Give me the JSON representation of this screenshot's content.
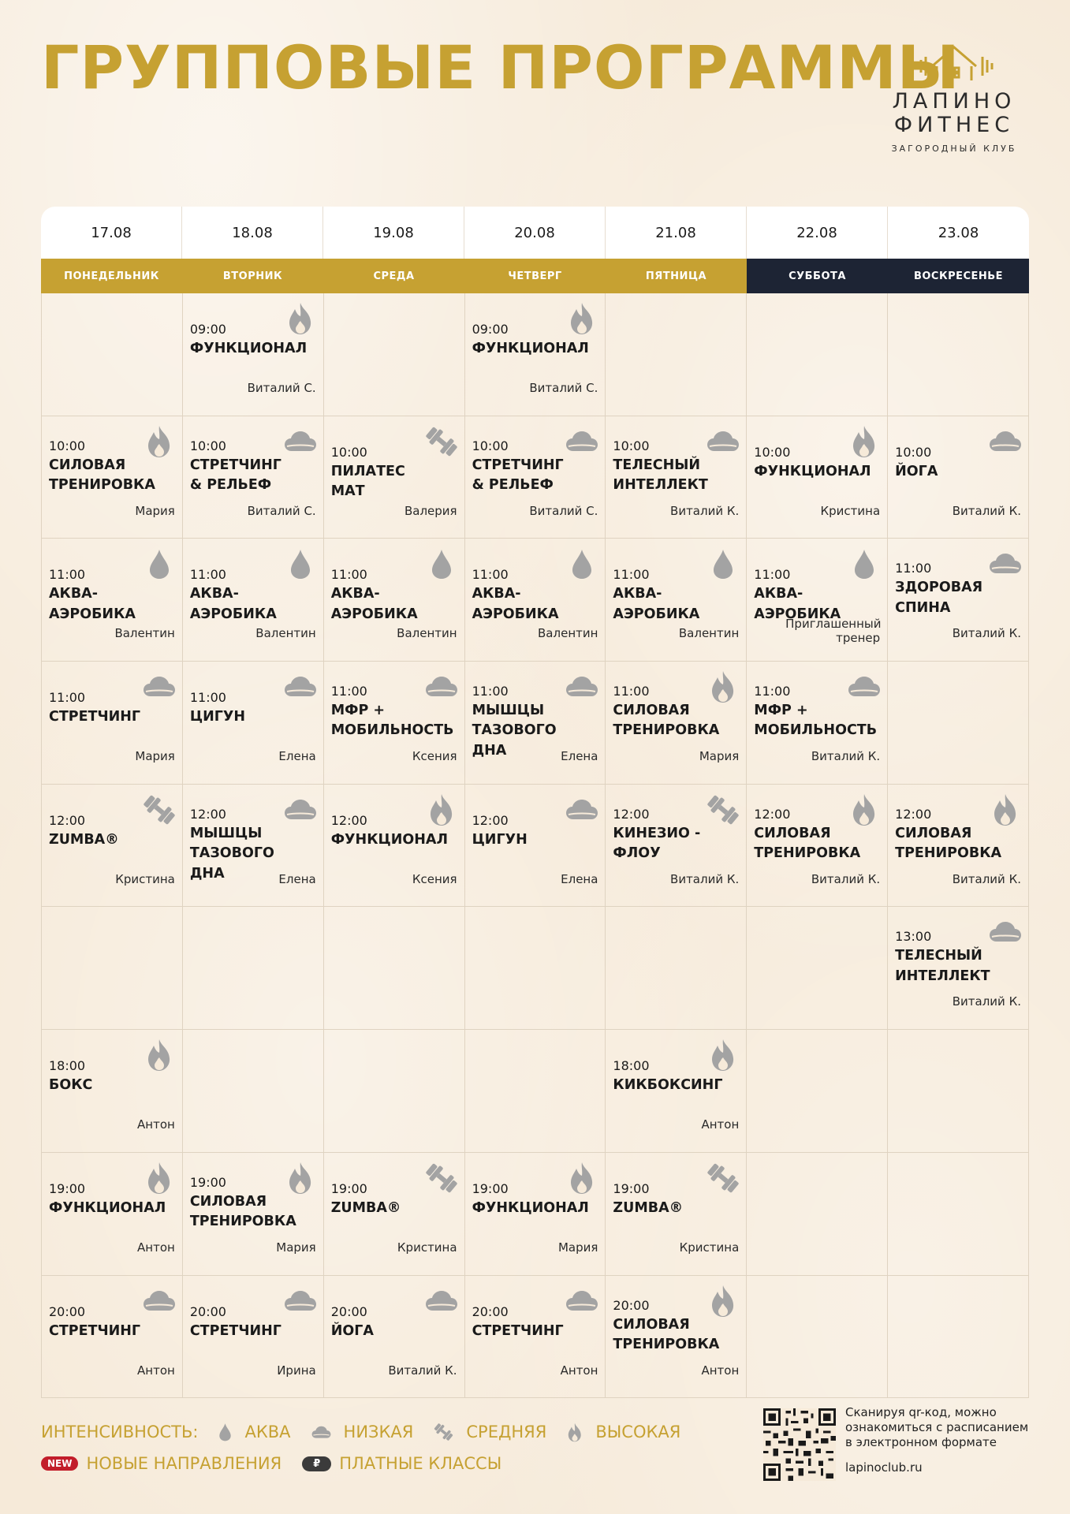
{
  "header": {
    "title": "ГРУППОВЫЕ ПРОГРАММЫ",
    "logo_line1": "ЛАПИНО",
    "logo_line2": "ФИТНЕС",
    "logo_line3": "ЗАГОРОДНЫЙ КЛУБ"
  },
  "dates": [
    "17.08",
    "18.08",
    "19.08",
    "20.08",
    "21.08",
    "22.08",
    "23.08"
  ],
  "days": [
    "ПОНЕДЕЛЬНИК",
    "ВТОРНИК",
    "СРЕДА",
    "ЧЕТВЕРГ",
    "ПЯТНИЦА",
    "СУББОТА",
    "ВОСКРЕСЕНЬЕ"
  ],
  "rows": [
    [
      null,
      {
        "time": "09:00",
        "name": "ФУНКЦИОНАЛ",
        "coach": "Виталий С.",
        "icon": "flame-icon"
      },
      null,
      {
        "time": "09:00",
        "name": "ФУНКЦИОНАЛ",
        "coach": "Виталий С.",
        "icon": "flame-icon"
      },
      null,
      null,
      null
    ],
    [
      {
        "time": "10:00",
        "name": "СИЛОВАЯ ТРЕНИРОВКА",
        "coach": "Мария",
        "icon": "flame-icon"
      },
      {
        "time": "10:00",
        "name": "СТРЕТЧИНГ & РЕЛЬЕФ",
        "coach": "Виталий С.",
        "icon": "cloud-icon"
      },
      {
        "time": "10:00",
        "name": "ПИЛАТЕС МАТ",
        "coach": "Валерия",
        "icon": "dumbbell-icon"
      },
      {
        "time": "10:00",
        "name": "СТРЕТЧИНГ & РЕЛЬЕФ",
        "coach": "Виталий С.",
        "icon": "cloud-icon"
      },
      {
        "time": "10:00",
        "name": "ТЕЛЕСНЫЙ ИНТЕЛЛЕКТ",
        "coach": "Виталий К.",
        "icon": "cloud-icon"
      },
      {
        "time": "10:00",
        "name": "ФУНКЦИОНАЛ",
        "coach": "Кристина",
        "icon": "flame-icon"
      },
      {
        "time": "10:00",
        "name": "ЙОГА",
        "coach": "Виталий К.",
        "icon": "cloud-icon"
      }
    ],
    [
      {
        "time": "11:00",
        "name": "АКВА-АЭРОБИКА",
        "coach": "Валентин",
        "icon": "drop-icon"
      },
      {
        "time": "11:00",
        "name": "АКВА-АЭРОБИКА",
        "coach": "Валентин",
        "icon": "drop-icon"
      },
      {
        "time": "11:00",
        "name": "АКВА-АЭРОБИКА",
        "coach": "Валентин",
        "icon": "drop-icon"
      },
      {
        "time": "11:00",
        "name": "АКВА-АЭРОБИКА",
        "coach": "Валентин",
        "icon": "drop-icon"
      },
      {
        "time": "11:00",
        "name": "АКВА-АЭРОБИКА",
        "coach": "Валентин",
        "icon": "drop-icon"
      },
      {
        "time": "11:00",
        "name": "АКВА-АЭРОБИКА",
        "coach": "Приглашенный тренер",
        "icon": "drop-icon"
      },
      {
        "time": "11:00",
        "name": "ЗДОРОВАЯ СПИНА",
        "coach": "Виталий К.",
        "icon": "cloud-icon"
      }
    ],
    [
      {
        "time": "11:00",
        "name": "СТРЕТЧИНГ",
        "coach": "Мария",
        "icon": "cloud-icon"
      },
      {
        "time": "11:00",
        "name": "ЦИГУН",
        "coach": "Елена",
        "icon": "cloud-icon"
      },
      {
        "time": "11:00",
        "name": "МФР + МОБИЛЬНОСТЬ",
        "coach": "Ксения",
        "icon": "cloud-icon"
      },
      {
        "time": "11:00",
        "name": "МЫШЦЫ ТАЗОВОГО ДНА",
        "coach": "Елена",
        "icon": "cloud-icon"
      },
      {
        "time": "11:00",
        "name": "СИЛОВАЯ ТРЕНИРОВКА",
        "coach": "Мария",
        "icon": "flame-icon"
      },
      {
        "time": "11:00",
        "name": "МФР + МОБИЛЬНОСТЬ",
        "coach": "Виталий К.",
        "icon": "cloud-icon"
      },
      null
    ],
    [
      {
        "time": "12:00",
        "name": "ZUMBA®",
        "coach": "Кристина",
        "icon": "dumbbell-icon"
      },
      {
        "time": "12:00",
        "name": "МЫШЦЫ ТАЗОВОГО ДНА",
        "coach": "Елена",
        "icon": "cloud-icon"
      },
      {
        "time": "12:00",
        "name": "ФУНКЦИОНАЛ",
        "coach": "Ксения",
        "icon": "flame-icon"
      },
      {
        "time": "12:00",
        "name": "ЦИГУН",
        "coach": "Елена",
        "icon": "cloud-icon"
      },
      {
        "time": "12:00",
        "name": "КИНЕЗИО - ФЛОУ",
        "coach": "Виталий К.",
        "icon": "dumbbell-icon"
      },
      {
        "time": "12:00",
        "name": "СИЛОВАЯ ТРЕНИРОВКА",
        "coach": "Виталий К.",
        "icon": "flame-icon"
      },
      {
        "time": "12:00",
        "name": "СИЛОВАЯ ТРЕНИРОВКА",
        "coach": "Виталий К.",
        "icon": "flame-icon"
      }
    ],
    [
      null,
      null,
      null,
      null,
      null,
      null,
      {
        "time": "13:00",
        "name": "ТЕЛЕСНЫЙ ИНТЕЛЛЕКТ",
        "coach": "Виталий К.",
        "icon": "cloud-icon"
      }
    ],
    [
      {
        "time": "18:00",
        "name": "БОКС",
        "coach": "Антон",
        "icon": "flame-icon"
      },
      null,
      null,
      null,
      {
        "time": "18:00",
        "name": "КИКБОКСИНГ",
        "coach": "Антон",
        "icon": "flame-icon"
      },
      null,
      null
    ],
    [
      {
        "time": "19:00",
        "name": "ФУНКЦИОНАЛ",
        "coach": "Антон",
        "icon": "flame-icon"
      },
      {
        "time": "19:00",
        "name": "СИЛОВАЯ ТРЕНИРОВКА",
        "coach": "Мария",
        "icon": "flame-icon"
      },
      {
        "time": "19:00",
        "name": "ZUMBA®",
        "coach": "Кристина",
        "icon": "dumbbell-icon"
      },
      {
        "time": "19:00",
        "name": "ФУНКЦИОНАЛ",
        "coach": "Мария",
        "icon": "flame-icon"
      },
      {
        "time": "19:00",
        "name": "ZUMBA®",
        "coach": "Кристина",
        "icon": "dumbbell-icon"
      },
      null,
      null
    ],
    [
      {
        "time": "20:00",
        "name": "СТРЕТЧИНГ",
        "coach": "Антон",
        "icon": "cloud-icon"
      },
      {
        "time": "20:00",
        "name": "СТРЕТЧИНГ",
        "coach": "Ирина",
        "icon": "cloud-icon"
      },
      {
        "time": "20:00",
        "name": "ЙОГА",
        "coach": "Виталий К.",
        "icon": "cloud-icon"
      },
      {
        "time": "20:00",
        "name": "СТРЕТЧИНГ",
        "coach": "Антон",
        "icon": "cloud-icon"
      },
      {
        "time": "20:00",
        "name": "СИЛОВАЯ ТРЕНИРОВКА",
        "coach": "Антон",
        "icon": "flame-icon"
      },
      null,
      null
    ]
  ],
  "legend": {
    "intensity_label": "ИНТЕНСИВНОСТЬ:",
    "aqua": "АКВА",
    "low": "НИЗКАЯ",
    "medium": "СРЕДНЯЯ",
    "high": "ВЫСОКАЯ",
    "new_badge": "NEW",
    "new_label": "НОВЫЕ НАПРАВЛЕНИЯ",
    "paid_badge": "₽",
    "paid_label": "ПЛАТНЫЕ КЛАССЫ"
  },
  "footer": {
    "qr_text": "Сканируя qr-код, можно ознакомиться с расписанием в электронном формате",
    "site": "lapinoclub.ru"
  },
  "colors": {
    "gold": "#c6a132",
    "navy": "#1d2434",
    "icon_gray": "#a3a3a3",
    "background": "#f6ead9"
  }
}
